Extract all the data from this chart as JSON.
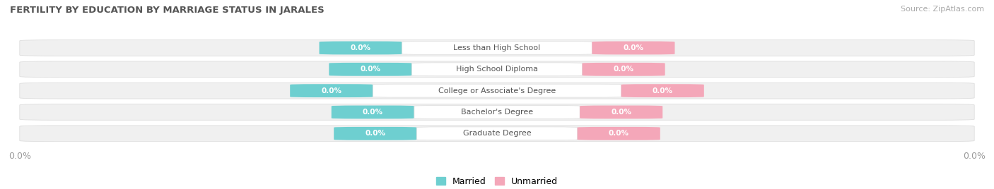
{
  "title": "FERTILITY BY EDUCATION BY MARRIAGE STATUS IN JARALES",
  "source": "Source: ZipAtlas.com",
  "categories": [
    "Less than High School",
    "High School Diploma",
    "College or Associate's Degree",
    "Bachelor's Degree",
    "Graduate Degree"
  ],
  "married_values": [
    0.0,
    0.0,
    0.0,
    0.0,
    0.0
  ],
  "unmarried_values": [
    0.0,
    0.0,
    0.0,
    0.0,
    0.0
  ],
  "married_color": "#6ECFD0",
  "unmarried_color": "#F4A7B9",
  "bar_bg_color": "#F0F0F0",
  "bar_border_color": "#DDDDDD",
  "label_box_color": "#FFFFFF",
  "title_color": "#555555",
  "label_color": "#555555",
  "axis_label_color": "#999999",
  "figsize": [
    14.06,
    2.68
  ],
  "dpi": 100
}
